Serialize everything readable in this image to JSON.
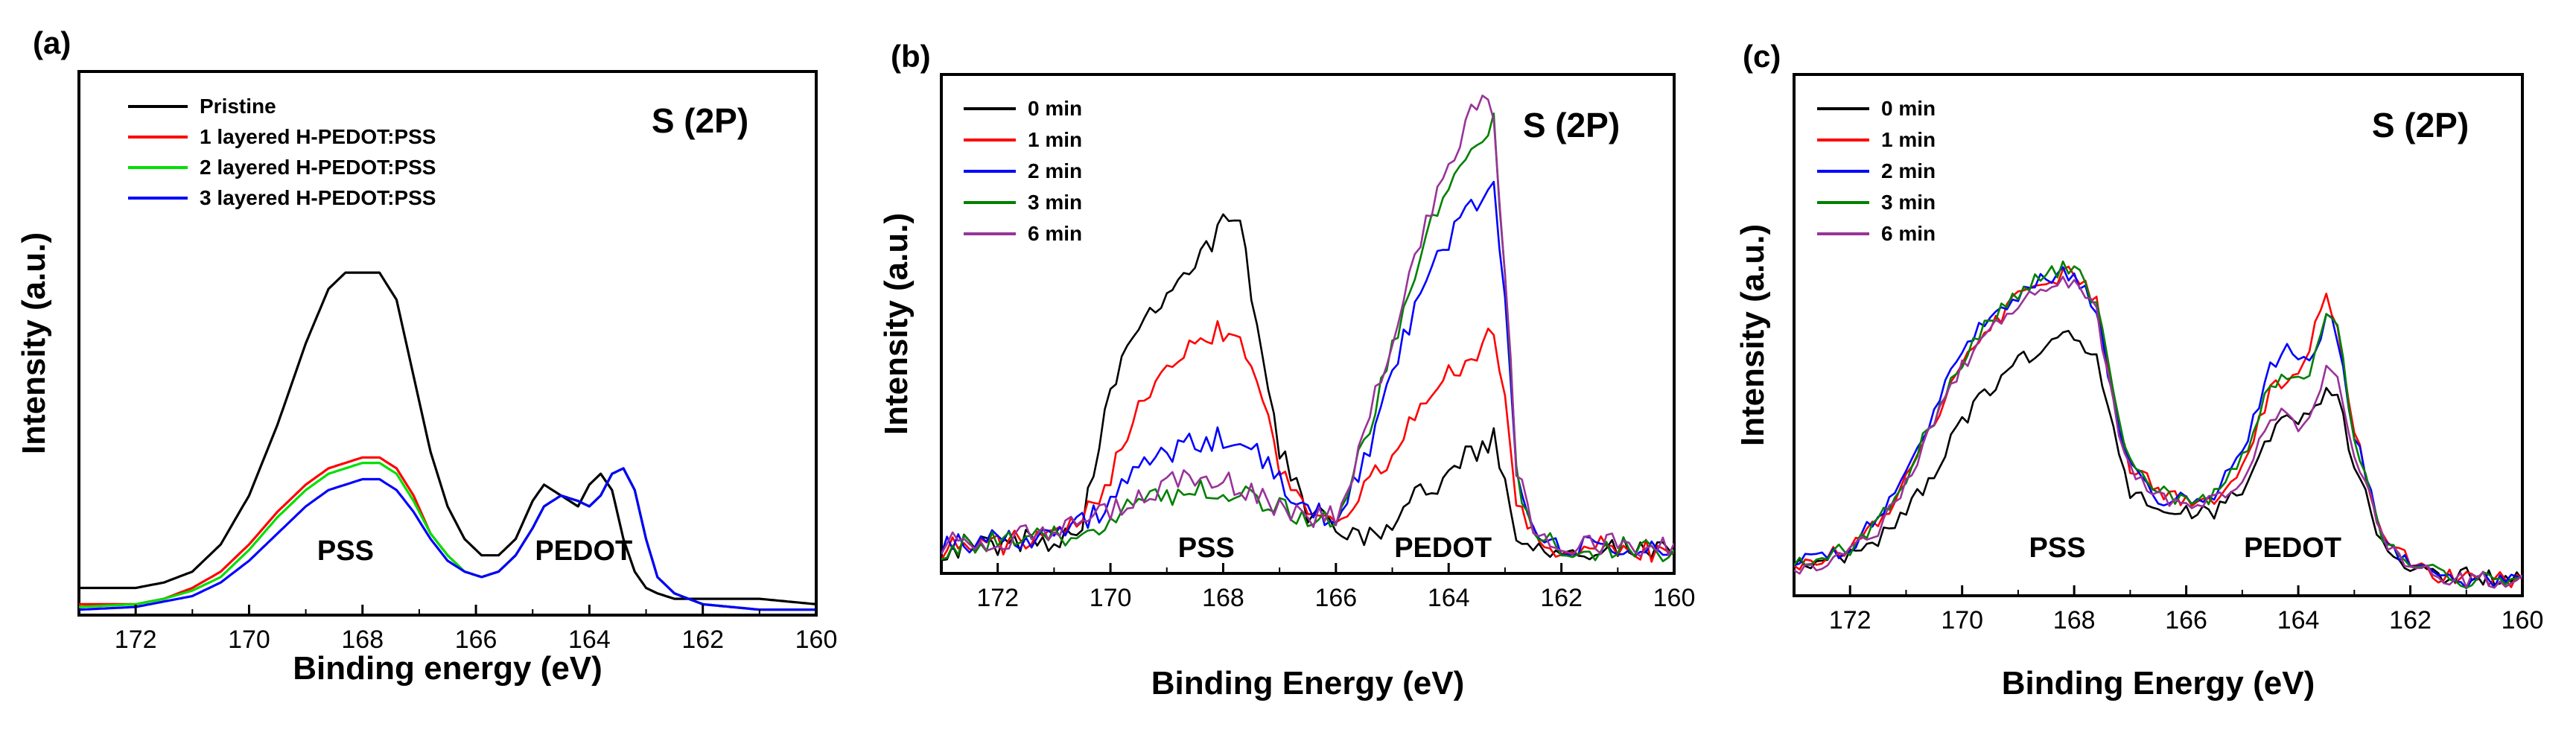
{
  "figure": {
    "panels": [
      "(a)",
      "(b)",
      "(c)"
    ]
  },
  "chart_data": [
    {
      "type": "line",
      "panel_label": "(a)",
      "title": "",
      "element_label": "S (2P)",
      "xlabel": "Binding energy (eV)",
      "ylabel": "Intensity (a.u.)",
      "xlim": [
        173,
        160
      ],
      "ylim": [
        0,
        100
      ],
      "xticks": [
        172,
        170,
        168,
        166,
        164,
        162,
        160
      ],
      "x_inverted": true,
      "grid": false,
      "legend_position": "top-left",
      "annotations": [
        {
          "text": "PSS",
          "x": 168.3,
          "y": 5
        },
        {
          "text": "PEDOT",
          "x": 164.1,
          "y": 5
        }
      ],
      "noise": 0,
      "series": [
        {
          "name": "Pristine",
          "color": "#000000",
          "x": [
            173,
            172,
            171.5,
            171,
            170.5,
            170,
            169.5,
            169,
            168.6,
            168.3,
            168,
            167.7,
            167.4,
            167.1,
            166.8,
            166.5,
            166.2,
            165.9,
            165.6,
            165.3,
            165,
            164.8,
            164.5,
            164.2,
            164,
            163.8,
            163.6,
            163.4,
            163.2,
            163,
            162.8,
            162.5,
            162,
            161,
            160
          ],
          "values": [
            5,
            5,
            6,
            8,
            13,
            22,
            35,
            50,
            60,
            63,
            63,
            63,
            58,
            44,
            30,
            20,
            14,
            11,
            11,
            14,
            21,
            24,
            22,
            20,
            24,
            26,
            23,
            14,
            8,
            5,
            4,
            3,
            3,
            3,
            2
          ]
        },
        {
          "name": "1 layered H-PEDOT:PSS",
          "color": "#ff0000",
          "x": [
            173,
            172,
            171.5,
            171,
            170.5,
            170,
            169.5,
            169,
            168.6,
            168.3,
            168,
            167.7,
            167.4,
            167.1,
            166.8,
            166.5,
            166.2,
            165.9,
            165.6,
            165.3,
            165,
            164.8,
            164.5,
            164.2,
            164,
            163.8,
            163.6,
            163.4,
            163.2,
            163,
            162.8,
            162.5,
            162,
            161,
            160
          ],
          "values": [
            2,
            2,
            3,
            5,
            8,
            13,
            19,
            24,
            27,
            28,
            29,
            29,
            27,
            22,
            15,
            11,
            8,
            7,
            8,
            11,
            16,
            20,
            22,
            21,
            20,
            22,
            26,
            27,
            23,
            14,
            7,
            4,
            2,
            1,
            1
          ]
        },
        {
          "name": "2 layered H-PEDOT:PSS",
          "color": "#00e000",
          "x": [
            173,
            172,
            171.5,
            171,
            170.5,
            170,
            169.5,
            169,
            168.6,
            168.3,
            168,
            167.7,
            167.4,
            167.1,
            166.8,
            166.5,
            166.2,
            165.9,
            165.6,
            165.3,
            165,
            164.8,
            164.5,
            164.2,
            164,
            163.8,
            163.6,
            163.4,
            163.2,
            163,
            162.8,
            162.5,
            162,
            161,
            160
          ],
          "values": [
            1.5,
            2,
            3,
            4.5,
            7,
            12,
            18,
            23,
            26,
            27,
            28,
            28,
            26,
            21,
            15,
            11,
            8,
            7,
            8,
            11,
            16,
            20,
            22,
            21,
            20,
            22,
            26,
            27,
            23,
            14,
            7,
            4,
            2,
            1,
            1
          ]
        },
        {
          "name": "3 layered H-PEDOT:PSS",
          "color": "#0000ff",
          "x": [
            173,
            172,
            171.5,
            171,
            170.5,
            170,
            169.5,
            169,
            168.6,
            168.3,
            168,
            167.7,
            167.4,
            167.1,
            166.8,
            166.5,
            166.2,
            165.9,
            165.6,
            165.3,
            165,
            164.8,
            164.5,
            164.2,
            164,
            163.8,
            163.6,
            163.4,
            163.2,
            163,
            162.8,
            162.5,
            162,
            161,
            160
          ],
          "values": [
            1,
            1.5,
            2.5,
            3.5,
            6,
            10,
            15,
            20,
            23,
            24,
            25,
            25,
            23,
            19,
            14,
            10,
            8,
            7,
            8,
            11,
            16,
            20,
            22,
            21,
            20,
            22,
            26,
            27,
            23,
            14,
            7,
            4,
            2,
            1,
            1
          ]
        }
      ]
    },
    {
      "type": "line",
      "panel_label": "(b)",
      "title": "",
      "element_label": "S (2P)",
      "xlabel": "Binding Energy (eV)",
      "ylabel": "Intensity (a.u.)",
      "xlim": [
        173,
        160
      ],
      "ylim": [
        0,
        100
      ],
      "xticks": [
        172,
        170,
        168,
        166,
        164,
        162,
        160
      ],
      "x_inverted": true,
      "grid": false,
      "legend_position": "top-left",
      "annotations": [
        {
          "text": "PSS",
          "x": 168.3,
          "y": 3
        },
        {
          "text": "PEDOT",
          "x": 164.1,
          "y": 3
        }
      ],
      "noise": 2.5,
      "series": [
        {
          "name": "0 min",
          "color": "#000000",
          "x": [
            173,
            172,
            171,
            170.5,
            170,
            169.5,
            169,
            168.5,
            168,
            167.7,
            167.4,
            167,
            166.5,
            166,
            165.5,
            165,
            164.5,
            164,
            163.5,
            163.2,
            163,
            162.8,
            162.5,
            162,
            161,
            160
          ],
          "values": [
            5,
            6,
            7,
            10,
            38,
            50,
            57,
            62,
            70,
            70,
            50,
            25,
            12,
            10,
            8,
            10,
            16,
            20,
            25,
            27,
            18,
            8,
            6,
            5,
            5,
            4
          ]
        },
        {
          "name": "1 min",
          "color": "#ff0000",
          "x": [
            173,
            172,
            171,
            170.5,
            170,
            169.5,
            169,
            168.5,
            168,
            167.7,
            167.4,
            167,
            166.5,
            166,
            165.5,
            165,
            164.5,
            164,
            163.5,
            163.2,
            163,
            162.8,
            162.5,
            162,
            161,
            160
          ],
          "values": [
            5,
            6,
            7,
            10,
            20,
            35,
            42,
            47,
            49,
            47,
            40,
            22,
            12,
            12,
            16,
            24,
            33,
            40,
            45,
            49,
            35,
            14,
            7,
            5,
            5,
            4
          ]
        },
        {
          "name": "2 min",
          "color": "#0000ff",
          "x": [
            173,
            172,
            171,
            170.5,
            170,
            169.5,
            169,
            168.5,
            168,
            167.7,
            167.4,
            167,
            166.5,
            166,
            165.5,
            165,
            164.5,
            164,
            163.5,
            163.2,
            163,
            162.8,
            162.5,
            162,
            161,
            160
          ],
          "values": [
            6,
            7,
            8,
            10,
            14,
            21,
            24,
            26,
            27,
            26,
            24,
            18,
            12,
            12,
            22,
            40,
            56,
            67,
            75,
            78,
            55,
            20,
            8,
            5,
            5,
            4
          ]
        },
        {
          "name": "3 min",
          "color": "#008000",
          "x": [
            173,
            172,
            171,
            170.5,
            170,
            169.5,
            169,
            168.5,
            168,
            167.7,
            167.4,
            167,
            166.5,
            166,
            165.5,
            165,
            164.5,
            164,
            163.5,
            163.2,
            163,
            162.8,
            162.5,
            162,
            161,
            160
          ],
          "values": [
            5,
            6,
            7,
            9,
            11,
            14,
            16,
            17,
            17,
            16,
            15,
            13,
            11,
            12,
            25,
            45,
            64,
            78,
            88,
            90,
            60,
            20,
            8,
            5,
            5,
            4
          ]
        },
        {
          "name": "6 min",
          "color": "#993399",
          "x": [
            173,
            172,
            171,
            170.5,
            170,
            169.5,
            169,
            168.5,
            168,
            167.7,
            167.4,
            167,
            166.5,
            166,
            165.5,
            165,
            164.5,
            164,
            163.5,
            163.2,
            163,
            162.8,
            162.5,
            162,
            161,
            160
          ],
          "values": [
            6,
            7,
            8,
            10,
            12,
            15,
            18,
            19,
            19,
            17,
            15,
            13,
            11,
            12,
            27,
            48,
            67,
            82,
            95,
            92,
            60,
            22,
            9,
            6,
            6,
            5
          ]
        }
      ]
    },
    {
      "type": "line",
      "panel_label": "(c)",
      "title": "",
      "element_label": "S (2P)",
      "xlabel": "Binding Energy (eV)",
      "ylabel": "Intensity (a.u.)",
      "xlim": [
        173,
        160
      ],
      "ylim": [
        0,
        100
      ],
      "xticks": [
        172,
        170,
        168,
        166,
        164,
        162,
        160
      ],
      "x_inverted": true,
      "grid": false,
      "legend_position": "top-left",
      "annotations": [
        {
          "text": "PSS",
          "x": 168.3,
          "y": 7
        },
        {
          "text": "PEDOT",
          "x": 164.1,
          "y": 7
        }
      ],
      "noise": 1.6,
      "series": [
        {
          "name": "0 min",
          "color": "#000000",
          "x": [
            173,
            172,
            171.5,
            171,
            170.5,
            170,
            169.5,
            169,
            168.5,
            168,
            167.6,
            167.2,
            167,
            166.5,
            166,
            165.5,
            165,
            164.5,
            164.2,
            164,
            163.8,
            163.5,
            163.3,
            163,
            162.5,
            162,
            161.5,
            161,
            160
          ],
          "values": [
            6,
            8,
            11,
            16,
            24,
            33,
            40,
            45,
            48,
            50,
            46,
            26,
            20,
            17,
            16,
            16,
            20,
            31,
            34,
            34,
            35,
            40,
            38,
            25,
            10,
            5,
            4,
            4,
            3
          ]
        },
        {
          "name": "1 min",
          "color": "#ff0000",
          "x": [
            173,
            172,
            171.5,
            171,
            170.5,
            170,
            169.5,
            169,
            168.5,
            168,
            167.6,
            167.2,
            167,
            166.5,
            166,
            165.5,
            165,
            164.5,
            164.2,
            164,
            163.8,
            163.5,
            163.3,
            163,
            162.5,
            162,
            161.5,
            161,
            160
          ],
          "values": [
            6,
            9,
            14,
            22,
            33,
            44,
            52,
            57,
            60,
            62,
            56,
            32,
            25,
            20,
            18,
            19,
            25,
            39,
            42,
            43,
            48,
            58,
            52,
            32,
            12,
            6,
            4,
            3,
            3
          ]
        },
        {
          "name": "2 min",
          "color": "#0000ff",
          "x": [
            173,
            172,
            171.5,
            171,
            170.5,
            170,
            169.5,
            169,
            168.5,
            168,
            167.6,
            167.2,
            167,
            166.5,
            166,
            165.5,
            165,
            164.5,
            164.2,
            164,
            163.8,
            163.5,
            163.3,
            163,
            162.5,
            162,
            161.5,
            161,
            160
          ],
          "values": [
            6,
            9,
            15,
            24,
            35,
            47,
            54,
            58,
            61,
            62,
            55,
            32,
            24,
            19,
            18,
            20,
            27,
            44,
            48,
            45,
            44,
            54,
            50,
            31,
            12,
            6,
            4,
            3,
            3
          ]
        },
        {
          "name": "3 min",
          "color": "#008000",
          "x": [
            173,
            172,
            171.5,
            171,
            170.5,
            170,
            169.5,
            169,
            168.5,
            168,
            167.6,
            167.2,
            167,
            166.5,
            166,
            165.5,
            165,
            164.5,
            164.2,
            164,
            163.8,
            163.5,
            163.3,
            163,
            162.5,
            162,
            161.5,
            161,
            160
          ],
          "values": [
            6,
            9,
            14,
            23,
            34,
            45,
            53,
            58,
            62,
            63,
            56,
            33,
            25,
            20,
            18,
            19,
            26,
            40,
            43,
            41,
            42,
            54,
            51,
            31,
            12,
            6,
            4,
            3,
            3
          ]
        },
        {
          "name": "6 min",
          "color": "#993399",
          "x": [
            173,
            172,
            171.5,
            171,
            170.5,
            170,
            169.5,
            169,
            168.5,
            168,
            167.6,
            167.2,
            167,
            166.5,
            166,
            165.5,
            165,
            164.5,
            164.2,
            164,
            163.8,
            163.5,
            163.3,
            163,
            162.5,
            162,
            161.5,
            161,
            160
          ],
          "values": [
            5,
            8,
            13,
            22,
            33,
            44,
            51,
            56,
            59,
            60,
            54,
            32,
            24,
            19,
            17,
            18,
            23,
            34,
            35,
            33,
            35,
            44,
            42,
            28,
            11,
            6,
            4,
            3,
            3
          ]
        }
      ]
    }
  ]
}
